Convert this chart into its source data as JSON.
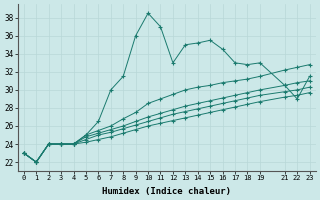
{
  "xlabel": "Humidex (Indice chaleur)",
  "ylabel": "",
  "bg_color": "#cce8e8",
  "line_color": "#1a7a6e",
  "xlim": [
    -0.5,
    23.5
  ],
  "ylim": [
    21.0,
    39.5
  ],
  "xticks": [
    0,
    1,
    2,
    3,
    4,
    5,
    6,
    7,
    8,
    9,
    10,
    11,
    12,
    13,
    14,
    15,
    16,
    17,
    18,
    19,
    21,
    22,
    23
  ],
  "yticks": [
    22,
    24,
    26,
    28,
    30,
    32,
    34,
    36,
    38
  ],
  "lines": [
    {
      "x": [
        0,
        1,
        2,
        3,
        4,
        5,
        6,
        7,
        8,
        9,
        10,
        11,
        12,
        13,
        14,
        15,
        16,
        17,
        18,
        19,
        21,
        22,
        23
      ],
      "y": [
        23.0,
        22.0,
        24.0,
        24.0,
        24.0,
        25.0,
        26.5,
        30.0,
        31.5,
        36.0,
        38.5,
        37.0,
        33.0,
        35.0,
        35.2,
        35.5,
        34.5,
        33.0,
        32.8,
        33.0,
        30.5,
        29.0,
        31.5
      ]
    },
    {
      "x": [
        0,
        1,
        2,
        3,
        4,
        5,
        6,
        7,
        8,
        9,
        10,
        11,
        12,
        13,
        14,
        15,
        16,
        17,
        18,
        19,
        21,
        22,
        23
      ],
      "y": [
        23.0,
        22.0,
        24.0,
        24.0,
        24.0,
        25.0,
        25.5,
        26.0,
        26.8,
        27.5,
        28.5,
        29.0,
        29.5,
        30.0,
        30.3,
        30.5,
        30.8,
        31.0,
        31.2,
        31.5,
        32.2,
        32.5,
        32.8
      ]
    },
    {
      "x": [
        0,
        1,
        2,
        3,
        4,
        5,
        6,
        7,
        8,
        9,
        10,
        11,
        12,
        13,
        14,
        15,
        16,
        17,
        18,
        19,
        21,
        22,
        23
      ],
      "y": [
        23.0,
        22.0,
        24.0,
        24.0,
        24.0,
        24.8,
        25.2,
        25.6,
        26.0,
        26.5,
        27.0,
        27.4,
        27.8,
        28.2,
        28.5,
        28.8,
        29.1,
        29.4,
        29.7,
        30.0,
        30.5,
        30.8,
        31.0
      ]
    },
    {
      "x": [
        0,
        1,
        2,
        3,
        4,
        5,
        6,
        7,
        8,
        9,
        10,
        11,
        12,
        13,
        14,
        15,
        16,
        17,
        18,
        19,
        21,
        22,
        23
      ],
      "y": [
        23.0,
        22.0,
        24.0,
        24.0,
        24.0,
        24.5,
        25.0,
        25.3,
        25.7,
        26.1,
        26.5,
        26.9,
        27.3,
        27.6,
        27.9,
        28.2,
        28.5,
        28.8,
        29.1,
        29.4,
        29.8,
        30.0,
        30.3
      ]
    },
    {
      "x": [
        0,
        1,
        2,
        3,
        4,
        5,
        6,
        7,
        8,
        9,
        10,
        11,
        12,
        13,
        14,
        15,
        16,
        17,
        18,
        19,
        21,
        22,
        23
      ],
      "y": [
        23.0,
        22.0,
        24.0,
        24.0,
        24.0,
        24.2,
        24.5,
        24.8,
        25.2,
        25.6,
        26.0,
        26.3,
        26.6,
        26.9,
        27.2,
        27.5,
        27.8,
        28.1,
        28.4,
        28.7,
        29.2,
        29.4,
        29.7
      ]
    }
  ]
}
